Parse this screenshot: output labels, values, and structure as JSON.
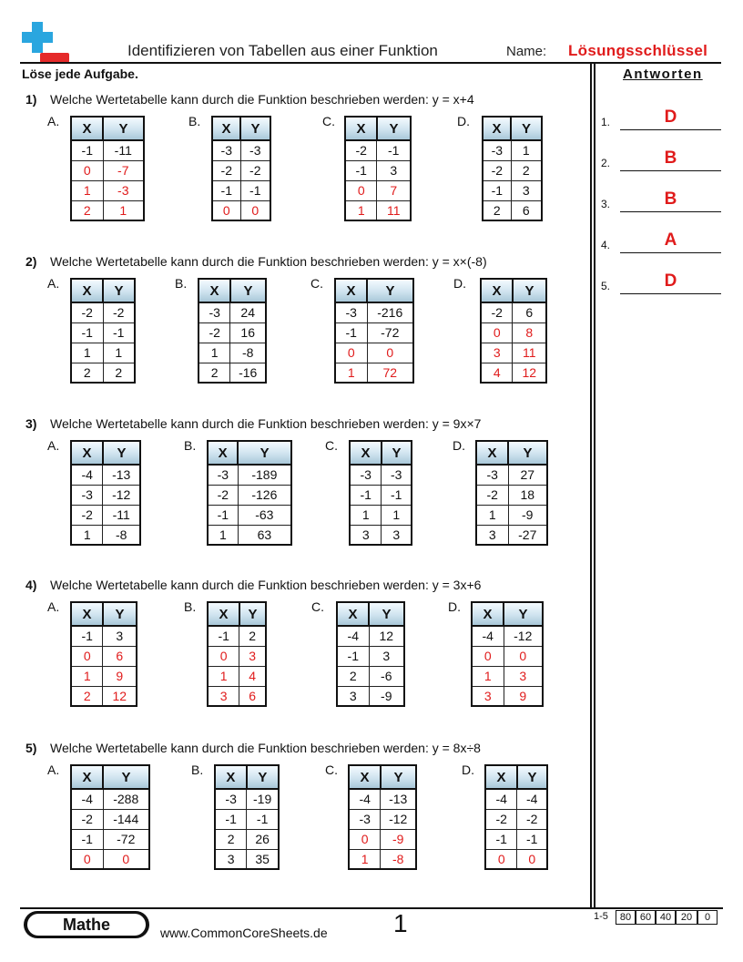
{
  "header": {
    "title": "Identifizieren von Tabellen aus einer Funktion",
    "name_label": "Name:",
    "key_label": "Lösungsschlüssel",
    "accent_color": "#e01b1b",
    "logo_icon": "plus-minus-logo-icon"
  },
  "instructions": "Löse jede Aufgabe.",
  "answers": {
    "title": "Antworten",
    "items": [
      {
        "num": "1.",
        "value": "D"
      },
      {
        "num": "2.",
        "value": "B"
      },
      {
        "num": "3.",
        "value": "B"
      },
      {
        "num": "4.",
        "value": "A"
      },
      {
        "num": "5.",
        "value": "D"
      }
    ]
  },
  "table_header": {
    "x": "X",
    "y": "Y"
  },
  "questions": [
    {
      "num": "1)",
      "text": "Welche Wertetabelle kann durch die Funktion beschrieben werden: y = x+4",
      "options": [
        {
          "label": "A.",
          "rows": [
            [
              "-1",
              "-11"
            ],
            [
              "0",
              "-7"
            ],
            [
              "1",
              "-3"
            ],
            [
              "2",
              "1"
            ]
          ],
          "red_rows": [
            1,
            2,
            3
          ]
        },
        {
          "label": "B.",
          "rows": [
            [
              "-3",
              "-3"
            ],
            [
              "-2",
              "-2"
            ],
            [
              "-1",
              "-1"
            ],
            [
              "0",
              "0"
            ]
          ],
          "red_rows": [
            3
          ]
        },
        {
          "label": "C.",
          "rows": [
            [
              "-2",
              "-1"
            ],
            [
              "-1",
              "3"
            ],
            [
              "0",
              "7"
            ],
            [
              "1",
              "11"
            ]
          ],
          "red_rows": [
            2,
            3
          ]
        },
        {
          "label": "D.",
          "rows": [
            [
              "-3",
              "1"
            ],
            [
              "-2",
              "2"
            ],
            [
              "-1",
              "3"
            ],
            [
              "2",
              "6"
            ]
          ],
          "red_rows": []
        }
      ]
    },
    {
      "num": "2)",
      "text": "Welche Wertetabelle kann durch die Funktion beschrieben werden: y = x×(-8)",
      "options": [
        {
          "label": "A.",
          "rows": [
            [
              "-2",
              "-2"
            ],
            [
              "-1",
              "-1"
            ],
            [
              "1",
              "1"
            ],
            [
              "2",
              "2"
            ]
          ],
          "red_rows": []
        },
        {
          "label": "B.",
          "rows": [
            [
              "-3",
              "24"
            ],
            [
              "-2",
              "16"
            ],
            [
              "1",
              "-8"
            ],
            [
              "2",
              "-16"
            ]
          ],
          "red_rows": []
        },
        {
          "label": "C.",
          "rows": [
            [
              "-3",
              "-216"
            ],
            [
              "-1",
              "-72"
            ],
            [
              "0",
              "0"
            ],
            [
              "1",
              "72"
            ]
          ],
          "red_rows": [
            2,
            3
          ]
        },
        {
          "label": "D.",
          "rows": [
            [
              "-2",
              "6"
            ],
            [
              "0",
              "8"
            ],
            [
              "3",
              "11"
            ],
            [
              "4",
              "12"
            ]
          ],
          "red_rows": [
            1,
            2,
            3
          ]
        }
      ]
    },
    {
      "num": "3)",
      "text": "Welche Wertetabelle kann durch die Funktion beschrieben werden: y = 9x×7",
      "options": [
        {
          "label": "A.",
          "rows": [
            [
              "-4",
              "-13"
            ],
            [
              "-3",
              "-12"
            ],
            [
              "-2",
              "-11"
            ],
            [
              "1",
              "-8"
            ]
          ],
          "red_rows": []
        },
        {
          "label": "B.",
          "rows": [
            [
              "-3",
              "-189"
            ],
            [
              "-2",
              "-126"
            ],
            [
              "-1",
              "-63"
            ],
            [
              "1",
              "63"
            ]
          ],
          "red_rows": []
        },
        {
          "label": "C.",
          "rows": [
            [
              "-3",
              "-3"
            ],
            [
              "-1",
              "-1"
            ],
            [
              "1",
              "1"
            ],
            [
              "3",
              "3"
            ]
          ],
          "red_rows": []
        },
        {
          "label": "D.",
          "rows": [
            [
              "-3",
              "27"
            ],
            [
              "-2",
              "18"
            ],
            [
              "1",
              "-9"
            ],
            [
              "3",
              "-27"
            ]
          ],
          "red_rows": []
        }
      ]
    },
    {
      "num": "4)",
      "text": "Welche Wertetabelle kann durch die Funktion beschrieben werden: y = 3x+6",
      "options": [
        {
          "label": "A.",
          "rows": [
            [
              "-1",
              "3"
            ],
            [
              "0",
              "6"
            ],
            [
              "1",
              "9"
            ],
            [
              "2",
              "12"
            ]
          ],
          "red_rows": [
            1,
            2,
            3
          ]
        },
        {
          "label": "B.",
          "rows": [
            [
              "-1",
              "2"
            ],
            [
              "0",
              "3"
            ],
            [
              "1",
              "4"
            ],
            [
              "3",
              "6"
            ]
          ],
          "red_rows": [
            1,
            2,
            3
          ]
        },
        {
          "label": "C.",
          "rows": [
            [
              "-4",
              "12"
            ],
            [
              "-1",
              "3"
            ],
            [
              "2",
              "-6"
            ],
            [
              "3",
              "-9"
            ]
          ],
          "red_rows": []
        },
        {
          "label": "D.",
          "rows": [
            [
              "-4",
              "-12"
            ],
            [
              "0",
              "0"
            ],
            [
              "1",
              "3"
            ],
            [
              "3",
              "9"
            ]
          ],
          "red_rows": [
            1,
            2,
            3
          ]
        }
      ]
    },
    {
      "num": "5)",
      "text": "Welche Wertetabelle kann durch die Funktion beschrieben werden: y = 8x÷8",
      "options": [
        {
          "label": "A.",
          "rows": [
            [
              "-4",
              "-288"
            ],
            [
              "-2",
              "-144"
            ],
            [
              "-1",
              "-72"
            ],
            [
              "0",
              "0"
            ]
          ],
          "red_rows": [
            3
          ]
        },
        {
          "label": "B.",
          "rows": [
            [
              "-3",
              "-19"
            ],
            [
              "-1",
              "-1"
            ],
            [
              "2",
              "26"
            ],
            [
              "3",
              "35"
            ]
          ],
          "red_rows": []
        },
        {
          "label": "C.",
          "rows": [
            [
              "-4",
              "-13"
            ],
            [
              "-3",
              "-12"
            ],
            [
              "0",
              "-9"
            ],
            [
              "1",
              "-8"
            ]
          ],
          "red_rows": [
            2,
            3
          ]
        },
        {
          "label": "D.",
          "rows": [
            [
              "-4",
              "-4"
            ],
            [
              "-2",
              "-2"
            ],
            [
              "-1",
              "-1"
            ],
            [
              "0",
              "0"
            ]
          ],
          "red_rows": [
            3
          ]
        }
      ]
    }
  ],
  "footer": {
    "brand": "Mathe",
    "site": "www.CommonCoreSheets.de",
    "page": "1",
    "score_range": "1-5",
    "scores": [
      "80",
      "60",
      "40",
      "20",
      "0"
    ]
  }
}
